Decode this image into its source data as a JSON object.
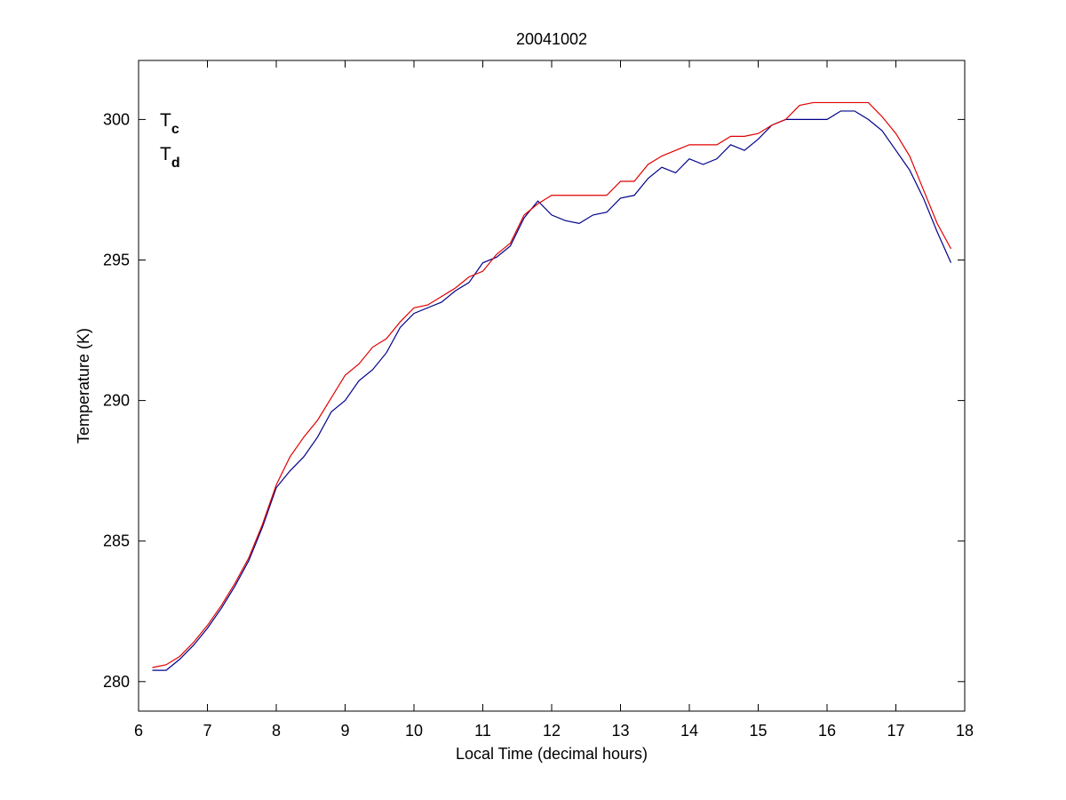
{
  "chart_data": {
    "type": "line",
    "title": "20041002",
    "xlabel": "Local Time (decimal hours)",
    "ylabel": "Temperature (K)",
    "x": [
      6.2,
      6.4,
      6.6,
      6.8,
      7.0,
      7.2,
      7.4,
      7.6,
      7.8,
      8.0,
      8.2,
      8.4,
      8.6,
      8.8,
      9.0,
      9.2,
      9.4,
      9.6,
      9.8,
      10.0,
      10.2,
      10.4,
      10.6,
      10.8,
      11.0,
      11.2,
      11.4,
      11.6,
      11.8,
      12.0,
      12.2,
      12.4,
      12.6,
      12.8,
      13.0,
      13.2,
      13.4,
      13.6,
      13.8,
      14.0,
      14.2,
      14.4,
      14.6,
      14.8,
      15.0,
      15.2,
      15.4,
      15.6,
      15.8,
      16.0,
      16.2,
      16.4,
      16.6,
      16.8,
      17.0,
      17.2,
      17.4,
      17.6,
      17.8
    ],
    "series": [
      {
        "name": "Tc",
        "color": "#00008b",
        "values": [
          280.4,
          280.4,
          280.8,
          281.3,
          281.9,
          282.6,
          283.4,
          284.3,
          285.5,
          286.9,
          287.5,
          288.0,
          288.7,
          289.6,
          290.0,
          290.7,
          291.1,
          291.7,
          292.6,
          293.1,
          293.3,
          293.5,
          293.9,
          294.2,
          294.9,
          295.1,
          295.5,
          296.5,
          297.1,
          296.6,
          296.4,
          296.3,
          296.6,
          296.7,
          297.2,
          297.3,
          297.9,
          298.3,
          298.1,
          298.6,
          298.4,
          298.6,
          299.1,
          298.9,
          299.3,
          299.8,
          300.0,
          300.0,
          300.0,
          300.0,
          300.3,
          300.3,
          300.0,
          299.6,
          298.9,
          298.2,
          297.2,
          296.0,
          294.9
        ]
      },
      {
        "name": "Td",
        "color": "#e00000",
        "values": [
          280.5,
          280.6,
          280.9,
          281.4,
          282.0,
          282.7,
          283.5,
          284.4,
          285.6,
          287.0,
          288.0,
          288.7,
          289.3,
          290.1,
          290.9,
          291.3,
          291.9,
          292.2,
          292.8,
          293.3,
          293.4,
          293.7,
          294.0,
          294.4,
          294.6,
          295.2,
          295.6,
          296.6,
          297.0,
          297.3,
          297.3,
          297.3,
          297.3,
          297.3,
          297.8,
          297.8,
          298.4,
          298.7,
          298.9,
          299.1,
          299.1,
          299.1,
          299.4,
          299.4,
          299.5,
          299.8,
          300.0,
          300.5,
          300.6,
          300.6,
          300.6,
          300.6,
          300.6,
          300.1,
          299.5,
          298.7,
          297.5,
          296.3,
          295.4
        ]
      }
    ],
    "xlim": [
      6,
      18
    ],
    "xticks": [
      6,
      7,
      8,
      9,
      10,
      11,
      12,
      13,
      14,
      15,
      16,
      17,
      18
    ],
    "ylim": [
      278.95,
      302.1
    ],
    "yticks": [
      280,
      285,
      290,
      295,
      300
    ],
    "legend": "upper left",
    "grid": false
  }
}
